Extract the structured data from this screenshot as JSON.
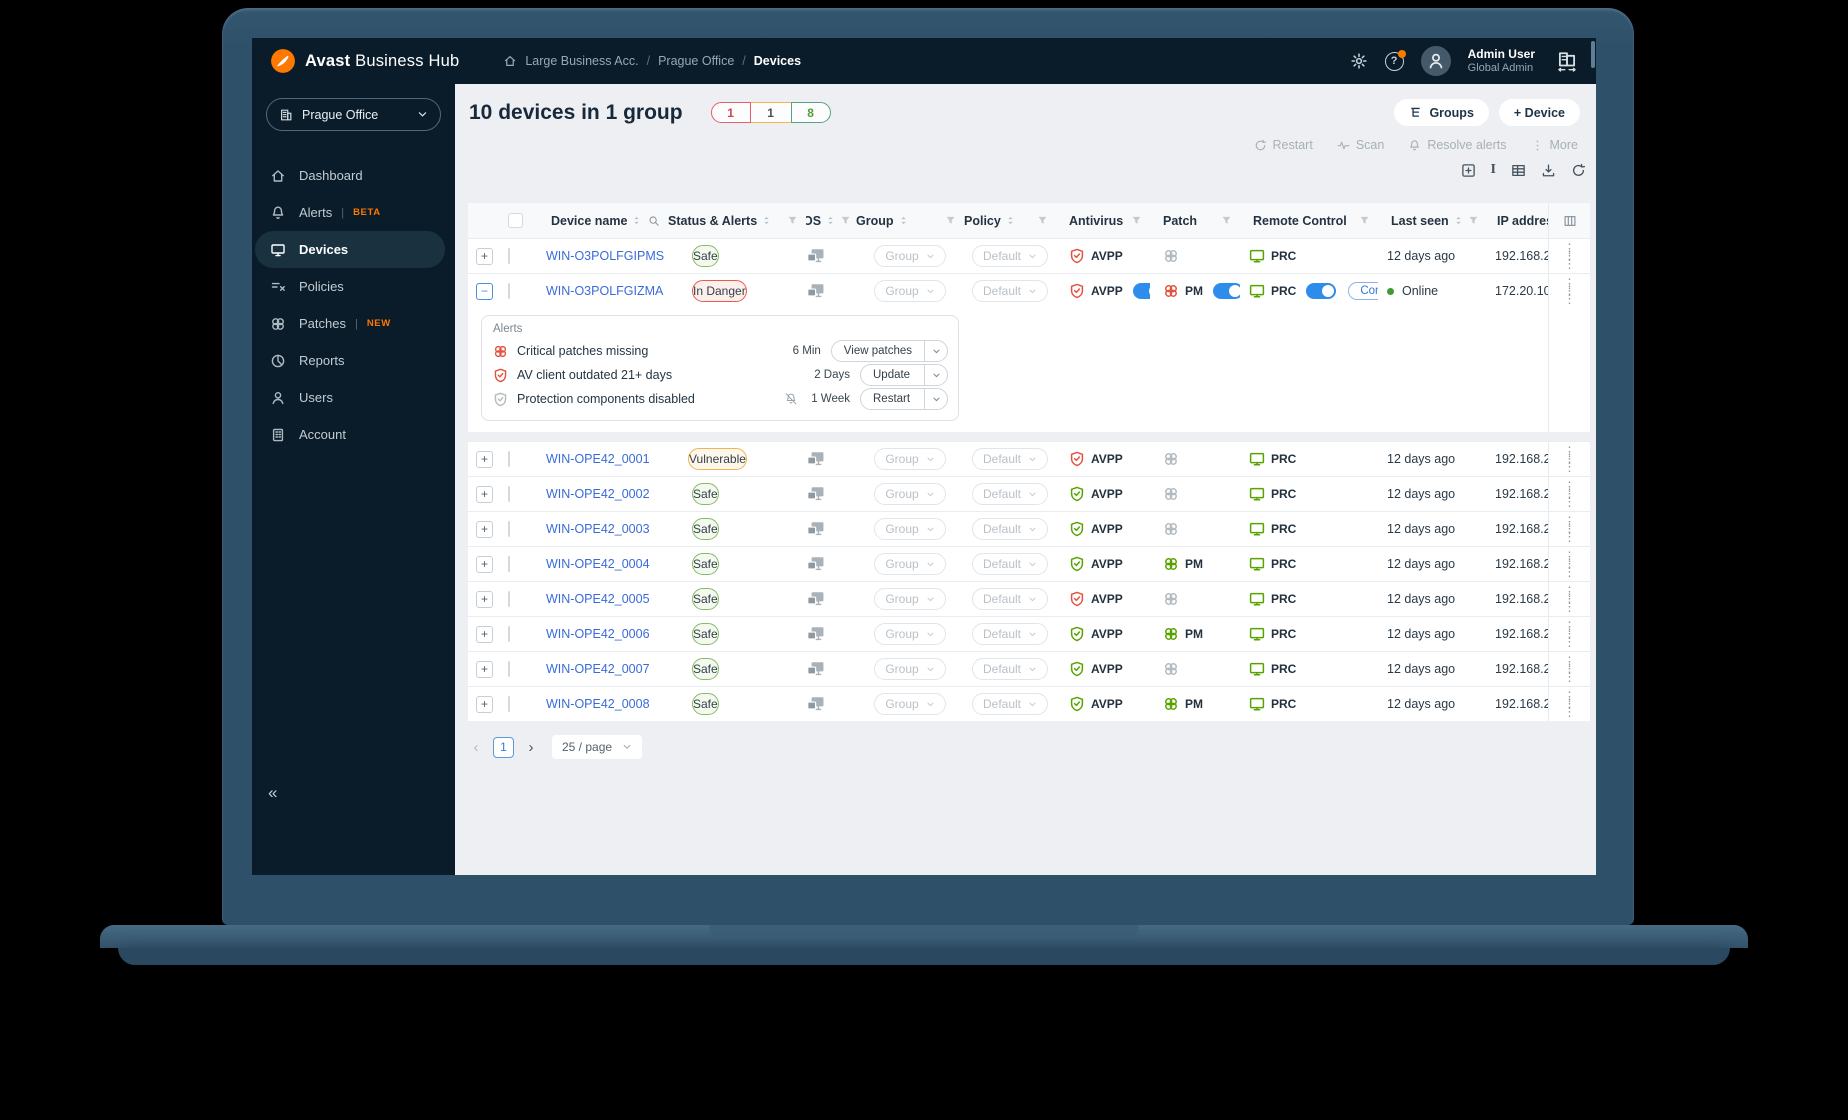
{
  "window": {
    "brand_bold": "Avast",
    "brand_rest": " Business Hub",
    "breadcrumb": [
      "Large Business Acc.",
      "Prague Office",
      "Devices"
    ],
    "user_name": "Admin User",
    "user_role": "Global Admin"
  },
  "sidebar": {
    "selector": "Prague Office",
    "collapse_glyph": "«",
    "items": [
      {
        "label": "Dashboard",
        "icon": "home-icon",
        "active": false,
        "badge": ""
      },
      {
        "label": "Alerts",
        "icon": "bell-icon",
        "active": false,
        "badge": "BETA"
      },
      {
        "label": "Devices",
        "icon": "monitor-icon",
        "active": true,
        "badge": ""
      },
      {
        "label": "Policies",
        "icon": "policies-icon",
        "active": false,
        "badge": ""
      },
      {
        "label": "Patches",
        "icon": "patches-icon",
        "active": false,
        "badge": "NEW"
      },
      {
        "label": "Reports",
        "icon": "reports-icon",
        "active": false,
        "badge": ""
      },
      {
        "label": "Users",
        "icon": "users-icon",
        "active": false,
        "badge": ""
      },
      {
        "label": "Account",
        "icon": "account-icon",
        "active": false,
        "badge": ""
      }
    ]
  },
  "toolbar": {
    "title": "10 devices in 1 group",
    "badges": [
      {
        "value": "1",
        "type": "danger"
      },
      {
        "value": "1",
        "type": "warning"
      },
      {
        "value": "8",
        "type": "success"
      }
    ],
    "groups_label": "Groups",
    "add_device_label": "+ Device",
    "actions": [
      {
        "label": "Restart",
        "icon": "refresh-icon"
      },
      {
        "label": "Scan",
        "icon": "scan-icon"
      },
      {
        "label": "Resolve alerts",
        "icon": "bell-icon"
      },
      {
        "label": "More",
        "icon": "more-icon"
      }
    ]
  },
  "table": {
    "columns": [
      {
        "key": "name",
        "label": "Device name",
        "sort": true,
        "search": true
      },
      {
        "key": "status",
        "label": "Status & Alerts",
        "sort": true,
        "filter": true
      },
      {
        "key": "os",
        "label": "OS",
        "sort": true,
        "filter": true
      },
      {
        "key": "group",
        "label": "Group",
        "sort": true,
        "filter": true
      },
      {
        "key": "policy",
        "label": "Policy",
        "sort": true,
        "filter": true
      },
      {
        "key": "antivirus",
        "label": "Antivirus",
        "sort": false,
        "filter": true
      },
      {
        "key": "patch",
        "label": "Patch",
        "sort": false,
        "filter": true
      },
      {
        "key": "remote",
        "label": "Remote Control",
        "sort": false,
        "filter": true
      },
      {
        "key": "last_seen",
        "label": "Last seen",
        "sort": true,
        "filter": true
      },
      {
        "key": "ip",
        "label": "IP address",
        "sort": false,
        "filter": false
      }
    ],
    "rows": [
      {
        "name": "WIN-O3POLFGIPMS",
        "status": "Safe",
        "status_type": "safe",
        "expanded": false,
        "group": "Group",
        "policy": "Default",
        "av_label": "AVPP",
        "av_color": "red",
        "av_toggle": false,
        "patch_label": "",
        "patch_color": "gray",
        "patch_toggle": false,
        "remote_label": "PRC",
        "remote_toggle": false,
        "connect_label": "",
        "online": false,
        "last_seen": "12 days ago",
        "ip": "192.168.2"
      },
      {
        "name": "WIN-O3POLFGIZMA",
        "status": "In Danger",
        "status_type": "danger",
        "expanded": true,
        "group": "Group",
        "policy": "Default",
        "av_label": "AVPP",
        "av_color": "red",
        "av_toggle": true,
        "patch_label": "PM",
        "patch_color": "red",
        "patch_toggle": true,
        "remote_label": "PRC",
        "remote_toggle": true,
        "connect_label": "Connect",
        "online": true,
        "last_seen": "Online",
        "ip": "172.20.10"
      },
      {
        "name": "WIN-OPE42_0001",
        "status": "Vulnerable",
        "status_type": "warn",
        "expanded": false,
        "group": "Group",
        "policy": "Default",
        "av_label": "AVPP",
        "av_color": "red",
        "av_toggle": false,
        "patch_label": "",
        "patch_color": "gray",
        "patch_toggle": false,
        "remote_label": "PRC",
        "remote_toggle": false,
        "connect_label": "",
        "online": false,
        "last_seen": "12 days ago",
        "ip": "192.168.2"
      },
      {
        "name": "WIN-OPE42_0002",
        "status": "Safe",
        "status_type": "safe",
        "expanded": false,
        "group": "Group",
        "policy": "Default",
        "av_label": "AVPP",
        "av_color": "green",
        "av_toggle": false,
        "patch_label": "",
        "patch_color": "gray",
        "patch_toggle": false,
        "remote_label": "PRC",
        "remote_toggle": false,
        "connect_label": "",
        "online": false,
        "last_seen": "12 days ago",
        "ip": "192.168.2"
      },
      {
        "name": "WIN-OPE42_0003",
        "status": "Safe",
        "status_type": "safe",
        "expanded": false,
        "group": "Group",
        "policy": "Default",
        "av_label": "AVPP",
        "av_color": "green",
        "av_toggle": false,
        "patch_label": "",
        "patch_color": "gray",
        "patch_toggle": false,
        "remote_label": "PRC",
        "remote_toggle": false,
        "connect_label": "",
        "online": false,
        "last_seen": "12 days ago",
        "ip": "192.168.2"
      },
      {
        "name": "WIN-OPE42_0004",
        "status": "Safe",
        "status_type": "safe",
        "expanded": false,
        "group": "Group",
        "policy": "Default",
        "av_label": "AVPP",
        "av_color": "green",
        "av_toggle": false,
        "patch_label": "PM",
        "patch_color": "green",
        "patch_toggle": false,
        "remote_label": "PRC",
        "remote_toggle": false,
        "connect_label": "",
        "online": false,
        "last_seen": "12 days ago",
        "ip": "192.168.2"
      },
      {
        "name": "WIN-OPE42_0005",
        "status": "Safe",
        "status_type": "safe",
        "expanded": false,
        "group": "Group",
        "policy": "Default",
        "av_label": "AVPP",
        "av_color": "red",
        "av_toggle": false,
        "patch_label": "",
        "patch_color": "gray",
        "patch_toggle": false,
        "remote_label": "PRC",
        "remote_toggle": false,
        "connect_label": "",
        "online": false,
        "last_seen": "12 days ago",
        "ip": "192.168.2"
      },
      {
        "name": "WIN-OPE42_0006",
        "status": "Safe",
        "status_type": "safe",
        "expanded": false,
        "group": "Group",
        "policy": "Default",
        "av_label": "AVPP",
        "av_color": "green",
        "av_toggle": false,
        "patch_label": "PM",
        "patch_color": "green",
        "patch_toggle": false,
        "remote_label": "PRC",
        "remote_toggle": false,
        "connect_label": "",
        "online": false,
        "last_seen": "12 days ago",
        "ip": "192.168.2"
      },
      {
        "name": "WIN-OPE42_0007",
        "status": "Safe",
        "status_type": "safe",
        "expanded": false,
        "group": "Group",
        "policy": "Default",
        "av_label": "AVPP",
        "av_color": "green",
        "av_toggle": false,
        "patch_label": "",
        "patch_color": "gray",
        "patch_toggle": false,
        "remote_label": "PRC",
        "remote_toggle": false,
        "connect_label": "",
        "online": false,
        "last_seen": "12 days ago",
        "ip": "192.168.2"
      },
      {
        "name": "WIN-OPE42_0008",
        "status": "Safe",
        "status_type": "safe",
        "expanded": false,
        "group": "Group",
        "policy": "Default",
        "av_label": "AVPP",
        "av_color": "green",
        "av_toggle": false,
        "patch_label": "PM",
        "patch_color": "green",
        "patch_toggle": false,
        "remote_label": "PRC",
        "remote_toggle": false,
        "connect_label": "",
        "online": false,
        "last_seen": "12 days ago",
        "ip": "192.168.2"
      }
    ]
  },
  "alerts_panel": {
    "title": "Alerts",
    "rows": [
      {
        "icon": "patch-alert-icon",
        "severity": "red",
        "muted": false,
        "text": "Critical patches missing",
        "time": "6 Min",
        "action": "View patches"
      },
      {
        "icon": "shield-alert-icon",
        "severity": "red",
        "muted": false,
        "text": "AV client outdated 21+ days",
        "time": "2 Days",
        "action": "Update"
      },
      {
        "icon": "shield-alert-icon",
        "severity": "gray",
        "muted": true,
        "text": "Protection components disabled",
        "time": "1 Week",
        "action": "Restart"
      }
    ]
  },
  "pagination": {
    "prev": "‹",
    "page": "1",
    "next": "›",
    "per_page": "25 / page"
  },
  "colors": {
    "brand_orange": "#ff7800",
    "danger": "#e2533f",
    "success": "#57a300",
    "warning": "#f0b357",
    "toggle_blue": "#2e8ceb",
    "link_blue": "#3a6bd8",
    "navy": "#0a1c29"
  }
}
